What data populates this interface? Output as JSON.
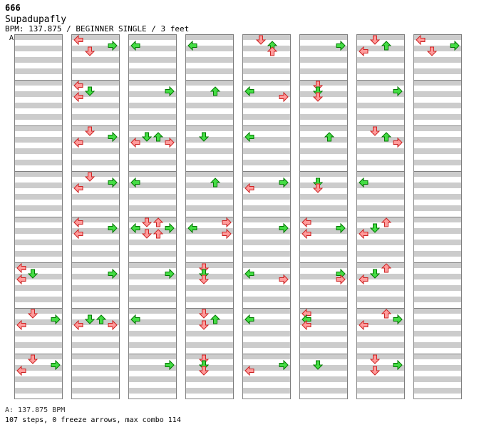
{
  "header": {
    "id": "666",
    "song_title": "Supadupafly",
    "chart_info": "BPM: 137.875 / BEGINNER SINGLE / 3 feet",
    "bpm_marker": "A"
  },
  "footer": {
    "bpm_legend": "A: 137.875 BPM",
    "stats": "107 steps, 0 freeze arrows, max combo 114"
  },
  "colors": {
    "quarter_note": "#ff9b9b",
    "eighth_note": "#44dd44",
    "stripe": "#cccccc",
    "background": "#ffffff"
  },
  "chart_data": {
    "type": "table",
    "lanes": [
      "left",
      "down",
      "up",
      "right"
    ],
    "notes_per_measure": 8,
    "notation": "each string = 8 eighth-note rows of 4 lanes (L D U R), 1 = arrow",
    "columns": [
      [
        "0000",
        "0000",
        "0000",
        "0000",
        "0000",
        "0000",
        "0000",
        "0000",
        "0000",
        "0000",
        "0000",
        "0000",
        "0000",
        "0000",
        "0000",
        "0000",
        "0000",
        "0000",
        "0000",
        "0000",
        "0000",
        "0000",
        "0000",
        "0000",
        "0000",
        "0000",
        "0000",
        "0000",
        "0000",
        "0000",
        "0000",
        "0000",
        "0000",
        "0000",
        "0000",
        "0000",
        "0000",
        "0000",
        "0000",
        "0000",
        "1000",
        "0100",
        "1000",
        "0000",
        "0000",
        "0000",
        "0000",
        "0000",
        "0100",
        "0001",
        "1000",
        "0000",
        "0000",
        "0000",
        "0000",
        "0000",
        "0100",
        "0001",
        "1000",
        "0000",
        "0000",
        "0000",
        "0000",
        "0000"
      ],
      [
        "1000",
        "0001",
        "0100",
        "0000",
        "0000",
        "0000",
        "0000",
        "0000",
        "1000",
        "0100",
        "1000",
        "0000",
        "0000",
        "0000",
        "0000",
        "0000",
        "0100",
        "0001",
        "1000",
        "0000",
        "0000",
        "0000",
        "0000",
        "0000",
        "0100",
        "0001",
        "1000",
        "0000",
        "0000",
        "0000",
        "0000",
        "0000",
        "1000",
        "0001",
        "1000",
        "0000",
        "0000",
        "0000",
        "0000",
        "0000",
        "0000",
        "0001",
        "0000",
        "0000",
        "0000",
        "0000",
        "0000",
        "0000",
        "0000",
        "0110",
        "1001",
        "0000",
        "0000",
        "0000",
        "0000",
        "0000",
        "0000",
        "0000",
        "0000",
        "0000",
        "0000",
        "0000",
        "0000",
        "0000"
      ],
      [
        "0000",
        "1000",
        "0000",
        "0000",
        "0000",
        "0000",
        "0000",
        "0000",
        "0000",
        "0001",
        "0000",
        "0000",
        "0000",
        "0000",
        "0000",
        "0000",
        "0000",
        "0110",
        "1001",
        "0000",
        "0000",
        "0000",
        "0000",
        "0000",
        "0000",
        "1000",
        "0000",
        "0000",
        "0000",
        "0000",
        "0000",
        "0000",
        "0110",
        "1001",
        "0110",
        "0000",
        "0000",
        "0000",
        "0000",
        "0000",
        "0000",
        "0001",
        "0000",
        "0000",
        "0000",
        "0000",
        "0000",
        "0000",
        "0000",
        "1000",
        "0000",
        "0000",
        "0000",
        "0000",
        "0000",
        "0000",
        "0000",
        "0001",
        "0000",
        "0000",
        "0000",
        "0000",
        "0000",
        "0000"
      ],
      [
        "0000",
        "1000",
        "0000",
        "0000",
        "0000",
        "0000",
        "0000",
        "0000",
        "0000",
        "0010",
        "0000",
        "0000",
        "0000",
        "0000",
        "0000",
        "0000",
        "0000",
        "0100",
        "0000",
        "0000",
        "0000",
        "0000",
        "0000",
        "0000",
        "0000",
        "0010",
        "0000",
        "0000",
        "0000",
        "0000",
        "0000",
        "0000",
        "0001",
        "1000",
        "0001",
        "0000",
        "0000",
        "0000",
        "0000",
        "0000",
        "0100",
        "0100",
        "0100",
        "0000",
        "0000",
        "0000",
        "0000",
        "0000",
        "0100",
        "0010",
        "0100",
        "0000",
        "0000",
        "0000",
        "0000",
        "0000",
        "0100",
        "0100",
        "0100",
        "0000",
        "0000",
        "0000",
        "0000",
        "0000"
      ],
      [
        "0100",
        "0010",
        "0010",
        "0000",
        "0000",
        "0000",
        "0000",
        "0000",
        "0000",
        "1000",
        "0001",
        "0000",
        "0000",
        "0000",
        "0000",
        "0000",
        "0000",
        "1000",
        "0000",
        "0000",
        "0000",
        "0000",
        "0000",
        "0000",
        "0000",
        "0001",
        "1000",
        "0000",
        "0000",
        "0000",
        "0000",
        "0000",
        "0000",
        "0001",
        "0000",
        "0000",
        "0000",
        "0000",
        "0000",
        "0000",
        "0000",
        "1000",
        "0001",
        "0000",
        "0000",
        "0000",
        "0000",
        "0000",
        "0000",
        "1000",
        "0000",
        "0000",
        "0000",
        "0000",
        "0000",
        "0000",
        "0000",
        "0001",
        "1000",
        "0000",
        "0000",
        "0000",
        "0000",
        "0000"
      ],
      [
        "0000",
        "0001",
        "0000",
        "0000",
        "0000",
        "0000",
        "0000",
        "0000",
        "0100",
        "0100",
        "0100",
        "0000",
        "0000",
        "0000",
        "0000",
        "0000",
        "0000",
        "0010",
        "0000",
        "0000",
        "0000",
        "0000",
        "0000",
        "0000",
        "0000",
        "0100",
        "0100",
        "0000",
        "0000",
        "0000",
        "0000",
        "0000",
        "1000",
        "0001",
        "1000",
        "0000",
        "0000",
        "0000",
        "0000",
        "0000",
        "0000",
        "0001",
        "0001",
        "0000",
        "0000",
        "0000",
        "0000",
        "0000",
        "1000",
        "1000",
        "1000",
        "0000",
        "0000",
        "0000",
        "0000",
        "0000",
        "0000",
        "0100",
        "0000",
        "0000",
        "0000",
        "0000",
        "0000",
        "0000"
      ],
      [
        "0100",
        "0010",
        "1000",
        "0000",
        "0000",
        "0000",
        "0000",
        "0000",
        "0000",
        "0001",
        "0000",
        "0000",
        "0000",
        "0000",
        "0000",
        "0000",
        "0100",
        "0010",
        "0001",
        "0000",
        "0000",
        "0000",
        "0000",
        "0000",
        "0000",
        "1000",
        "0000",
        "0000",
        "0000",
        "0000",
        "0000",
        "0000",
        "0010",
        "0100",
        "1000",
        "0000",
        "0000",
        "0000",
        "0000",
        "0000",
        "0010",
        "0100",
        "1000",
        "0000",
        "0000",
        "0000",
        "0000",
        "0000",
        "0010",
        "0001",
        "1000",
        "0000",
        "0000",
        "0000",
        "0000",
        "0000",
        "0100",
        "0001",
        "0100",
        "0000",
        "0000",
        "0000",
        "0000",
        "0000"
      ],
      [
        "1000",
        "0001",
        "0100",
        "0000",
        "0000",
        "0000",
        "0000",
        "0000",
        "0000",
        "0000",
        "0000",
        "0000",
        "0000",
        "0000",
        "0000",
        "0000",
        "0000",
        "0000",
        "0000",
        "0000",
        "0000",
        "0000",
        "0000",
        "0000",
        "0000",
        "0000",
        "0000",
        "0000",
        "0000",
        "0000",
        "0000",
        "0000",
        "0000",
        "0000",
        "0000",
        "0000",
        "0000",
        "0000",
        "0000",
        "0000",
        "0000",
        "0000",
        "0000",
        "0000",
        "0000",
        "0000",
        "0000",
        "0000",
        "0000",
        "0000",
        "0000",
        "0000",
        "0000",
        "0000",
        "0000",
        "0000",
        "0000",
        "0000",
        "0000",
        "0000",
        "0000",
        "0000",
        "0000",
        "0000"
      ]
    ]
  }
}
